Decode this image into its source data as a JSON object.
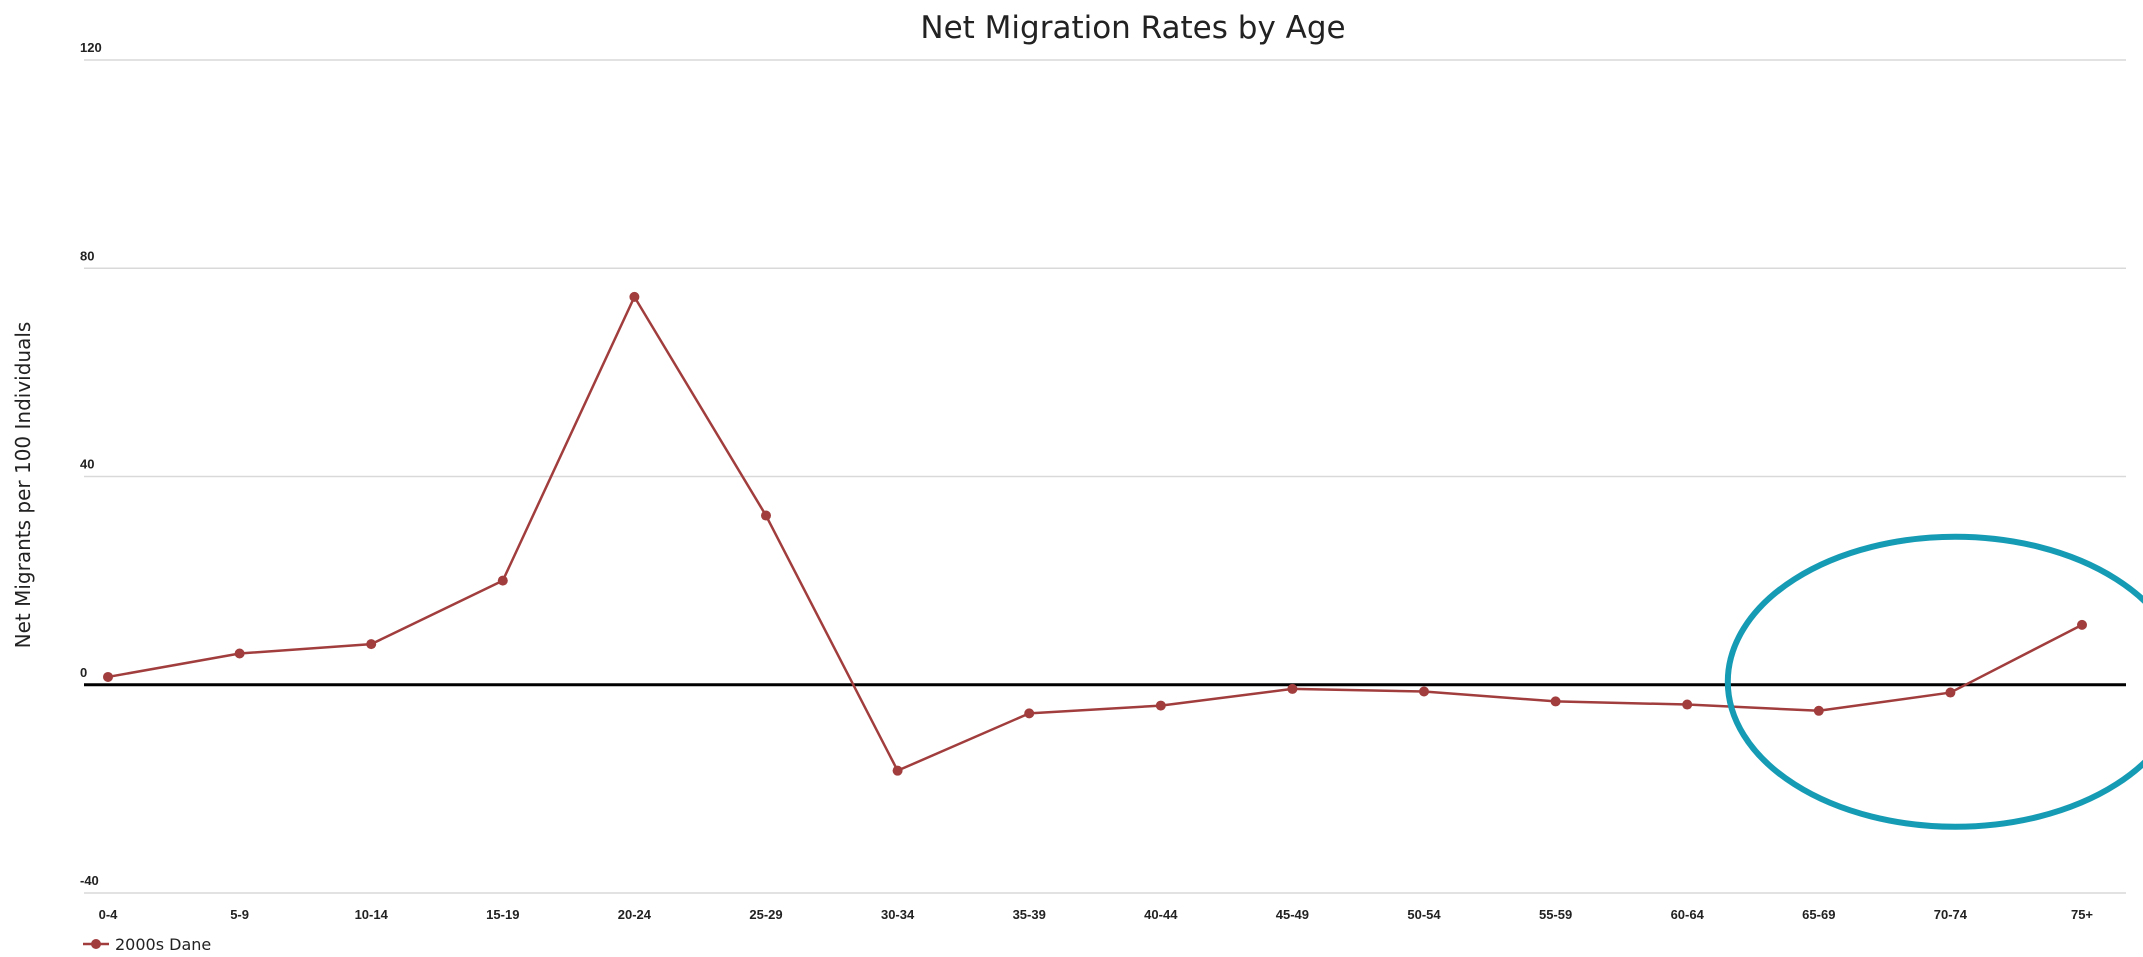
{
  "chart_data": {
    "type": "line",
    "title": "Net Migration Rates by Age",
    "xlabel": "",
    "ylabel": "Net Migrants per 100 Individuals",
    "ylim": [
      -40,
      120
    ],
    "yticks": [
      120,
      80,
      40,
      0,
      -40
    ],
    "categories": [
      "0-4",
      "5-9",
      "10-14",
      "15-19",
      "20-24",
      "25-29",
      "30-34",
      "35-39",
      "40-44",
      "45-49",
      "50-54",
      "55-59",
      "60-64",
      "65-69",
      "70-74",
      "75+"
    ],
    "series": [
      {
        "name": "2000s Dane",
        "color": "#a13d3d",
        "values": [
          1.5,
          6,
          7.8,
          20,
          74.5,
          32.5,
          -16.5,
          -5.5,
          -4,
          -0.8,
          -1.3,
          -3.2,
          -3.8,
          -5,
          -1.5,
          11.5
        ]
      }
    ],
    "zero_line": true,
    "grid": true,
    "legend": "bottom-left",
    "annotation": {
      "shape": "ellipse",
      "color": "#169bb5",
      "highlights": [
        "65-69",
        "70-74",
        "75+"
      ]
    }
  }
}
